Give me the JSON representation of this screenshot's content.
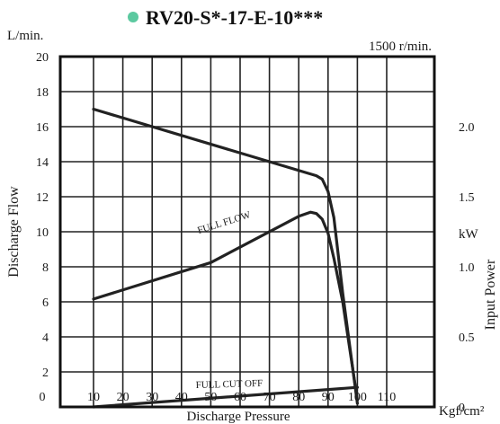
{
  "chart_data": {
    "type": "line",
    "title": "RV20-S*-17-E-10***",
    "title_marker_color": "#5cc9a0",
    "speed_note": "1500 r/min.",
    "xlabel": "Discharge Pressure",
    "x_unit": "Kgf/cm²",
    "ylabel_left": "Discharge Flow",
    "y_unit_left": "L/min.",
    "ylabel_right": "Input Power",
    "y_unit_right": "kW",
    "xlim": [
      5,
      115
    ],
    "ylim": [
      0,
      20
    ],
    "ylim_right": [
      0,
      2.5
    ],
    "grid": true,
    "x_ticks": [
      10,
      20,
      30,
      40,
      50,
      60,
      70,
      80,
      90,
      100,
      110
    ],
    "x_tick_labels": [
      "10",
      "20",
      "30",
      "40",
      "50",
      "60",
      "70",
      "80",
      "90",
      "100",
      "110"
    ],
    "origin_label": "0",
    "y_ticks": [
      2,
      4,
      6,
      8,
      10,
      12,
      14,
      16,
      18,
      20
    ],
    "y_tick_labels": [
      "2",
      "4",
      "6",
      "8",
      "10",
      "12",
      "14",
      "16",
      "18",
      "20"
    ],
    "y2_ticks": [
      0,
      0.5,
      1.0,
      1.5,
      2.0
    ],
    "y2_tick_labels": [
      "0",
      "0.5",
      "1.0",
      "1.5",
      "2.0"
    ],
    "series": [
      {
        "name": "",
        "axis": "left",
        "x": [
          10,
          70,
          86,
          88,
          90,
          92,
          95,
          100
        ],
        "y": [
          17,
          14,
          13.2,
          13.0,
          12.3,
          10.8,
          6.5,
          0.2
        ]
      },
      {
        "name": "FULL FLOW",
        "axis": "right",
        "x": [
          10,
          50,
          80,
          84,
          86,
          88,
          90,
          92,
          95,
          100
        ],
        "y": [
          0.77,
          1.03,
          1.36,
          1.39,
          1.38,
          1.34,
          1.24,
          1.06,
          0.75,
          0.05
        ]
      },
      {
        "name": "FULL CUT OFF",
        "axis": "right",
        "x": [
          10,
          100
        ],
        "y": [
          0.0,
          0.14
        ]
      }
    ]
  }
}
